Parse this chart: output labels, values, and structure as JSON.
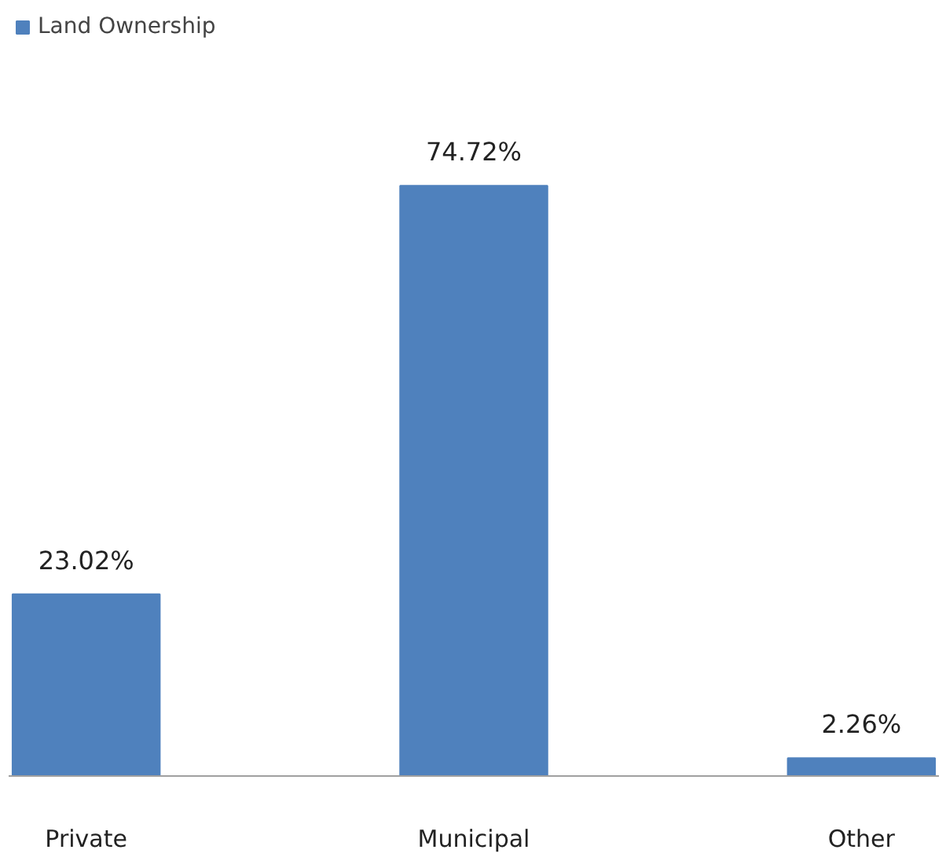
{
  "chart_data": {
    "type": "bar",
    "categories": [
      "Private",
      "Municipal",
      "Other"
    ],
    "series": [
      {
        "name": "Land Ownership",
        "color": "#4f81bd",
        "values": [
          23.02,
          74.72,
          2.26
        ],
        "value_labels": [
          "23.02%",
          "74.72%",
          "2.26%"
        ]
      }
    ],
    "legend": "top left"
  }
}
